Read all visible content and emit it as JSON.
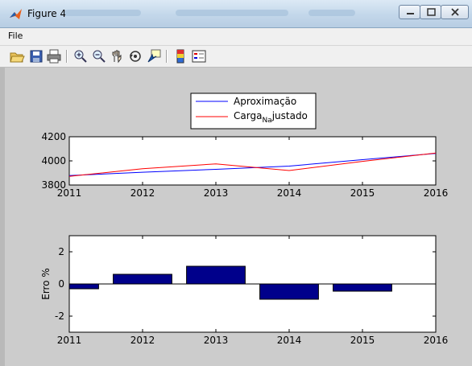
{
  "window": {
    "title": "Figure 4"
  },
  "menu": {
    "items": [
      "File"
    ]
  },
  "toolbar": {
    "buttons": [
      "open-icon",
      "save-icon",
      "print-icon",
      "zoom-in-icon",
      "zoom-out-icon",
      "pan-icon",
      "rotate-3d-icon",
      "data-cursor-icon",
      "colorbar-icon",
      "legend-icon"
    ]
  },
  "legend": {
    "entry1": "Aproximação",
    "entry2_main": "Carga",
    "entry2_sub": "Na",
    "entry2_rest": "justado"
  },
  "colors": {
    "aproximacao": "#0000ff",
    "carga": "#ff0000",
    "bars": "#00008b",
    "figure_bg": "#cccccc"
  },
  "chart_data": [
    {
      "type": "line",
      "x": [
        2011,
        2012,
        2013,
        2014,
        2015,
        2016
      ],
      "series": [
        {
          "name": "Aproximação",
          "values": [
            3878,
            3906,
            3930,
            3957,
            4010,
            4062
          ]
        },
        {
          "name": "CargaNajustado",
          "values": [
            3872,
            3935,
            3975,
            3920,
            3996,
            4065
          ]
        }
      ],
      "xlim": [
        2011,
        2016
      ],
      "ylim": [
        3800,
        4200
      ],
      "yticks": [
        3800,
        4000,
        4200
      ],
      "xticks": [
        2011,
        2012,
        2013,
        2014,
        2015,
        2016
      ],
      "legend_position": "top-center"
    },
    {
      "type": "bar",
      "x": [
        2011,
        2012,
        2013,
        2014,
        2015
      ],
      "values": [
        -0.3,
        0.6,
        1.1,
        -0.95,
        -0.45
      ],
      "xlim": [
        2011,
        2016
      ],
      "ylim": [
        -3,
        3
      ],
      "yticks": [
        -2,
        0,
        2
      ],
      "xticks": [
        2011,
        2012,
        2013,
        2014,
        2015,
        2016
      ],
      "ylabel": "Erro %"
    }
  ]
}
